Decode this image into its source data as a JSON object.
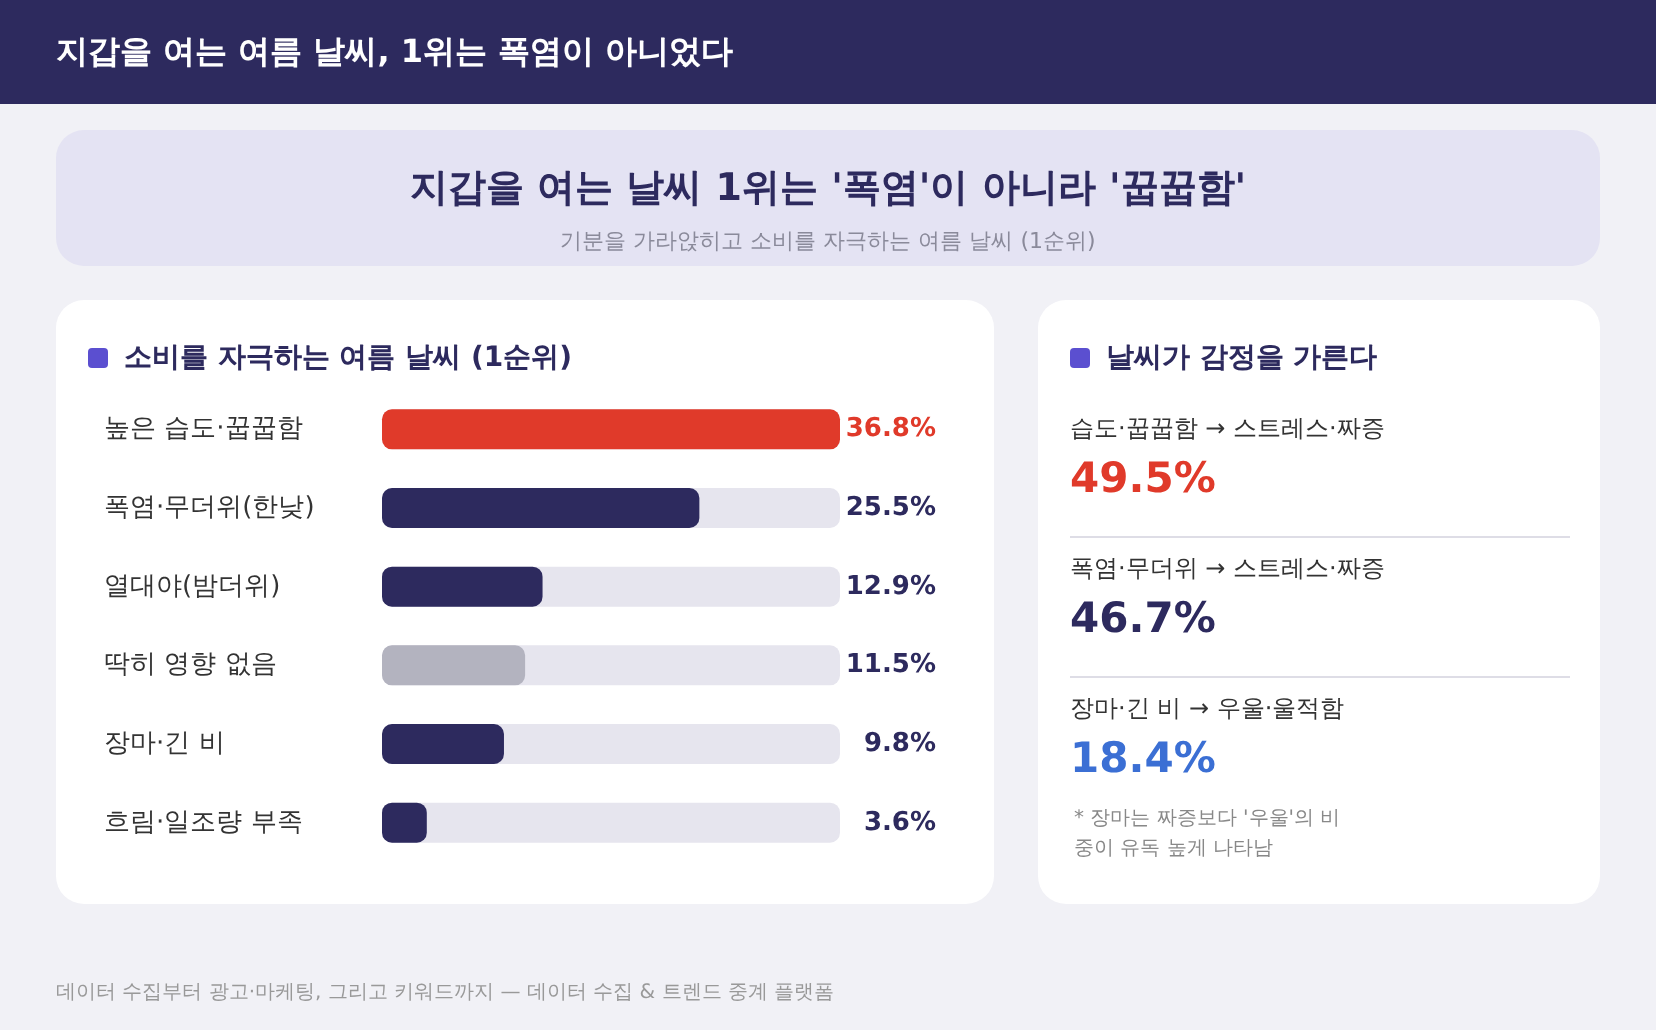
{
  "chart_data": [
    {
      "type": "bar",
      "orientation": "horizontal",
      "title": "소비를 자극하는 여름 날씨 (1순위)",
      "categories": [
        "높은 습도·꿉꿉함",
        "폭염·무더위(한낮)",
        "열대야(밤더위)",
        "딱히 영향 없음",
        "장마·긴 비",
        "흐림·일조량 부족"
      ],
      "values": [
        36.8,
        25.5,
        12.9,
        11.5,
        9.8,
        3.6
      ],
      "colors": [
        "#e03a2a",
        "#2d2a5e",
        "#2d2a5e",
        "#b3b3bf",
        "#2d2a5e",
        "#2d2a5e"
      ],
      "value_labels": [
        "36.8%",
        "25.5%",
        "12.9%",
        "11.5%",
        "9.8%",
        "3.6%"
      ],
      "tick_labels": "y",
      "annotations": [
        "지갑을 여는 여름 날씨, 1위는 폭염이 아니었다",
        "지갑을 여는 날씨 1위는 '폭염'이 아니라 '꿉꿉함'",
        "기분을 가라앉히고 소비를 자극하는 여름 날씨 (1순위)",
        "데이터 수집부터 광고·마케팅, 그리고 키워드까지 — 데이터 수집 & 트렌드 중계 플랫폼"
      ]
    },
    {
      "type": "other",
      "title": "날씨가 감정을 가른다",
      "annotations": [
        "습도·꿉꿉함 → 스트레스·짜증",
        "49.5%",
        "폭염·무더위 → 스트레스·짜증",
        "46.7%",
        "장마·긴 비 → 우울·울적함",
        "18.4%",
        "* 장마는 짜증보다 '우울'의 비중이 유독 높게 나타남"
      ]
    }
  ]
}
